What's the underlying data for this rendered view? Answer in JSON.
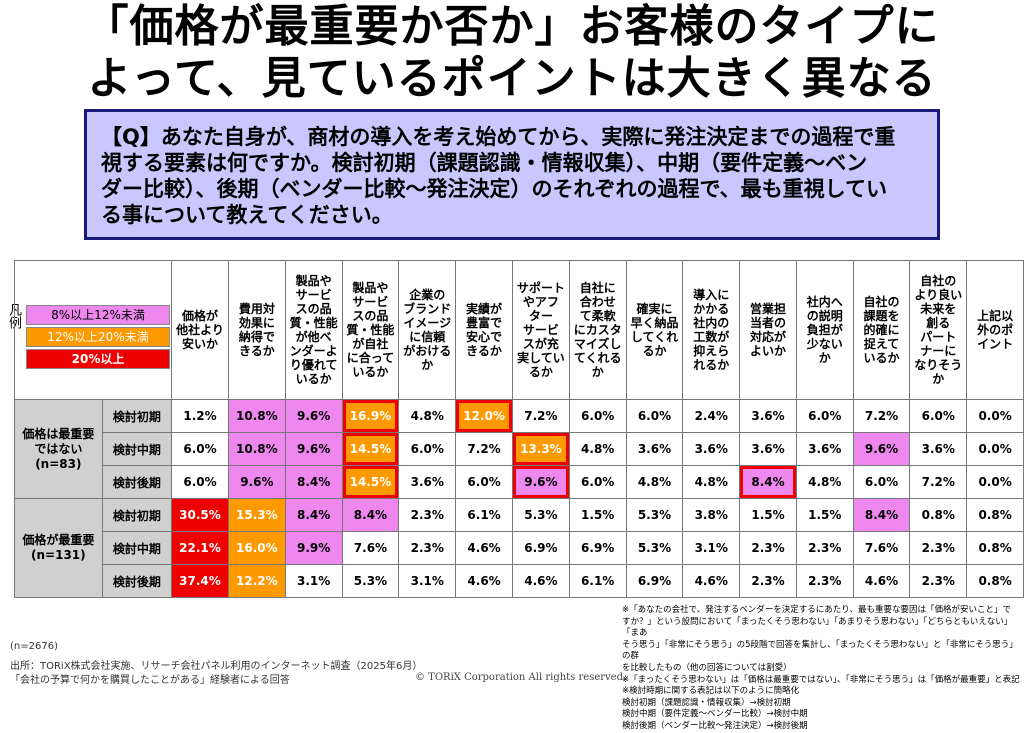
{
  "title_line1": "「価格が最重要か否か」お客様のタイプに",
  "title_line2": "よって、見ているポイントは大きく異なる",
  "question": {
    "lines": [
      "【Q】あなた自身が、商材の導入を考え始めてから、実際に発注決定までの過程で重",
      "視する要素は何ですか。検討初期（課題認識・情報収集）、中期（要件定義〜ベン",
      "ダー比較）、後期（ベンダー比較〜発注決定）のそれぞれの過程で、最も重視してい",
      "る事について教えてください。"
    ]
  },
  "legend": {
    "side_label": "凡例",
    "items": [
      {
        "label": "8%以上12%未満",
        "color": "#ee88ee"
      },
      {
        "label": "12%以上20%未満",
        "color": "#ff9900"
      },
      {
        "label": "20%以上",
        "color": "#ee0000"
      }
    ]
  },
  "columns": [
    [
      "価格が",
      "他社より",
      "安いか"
    ],
    [
      "費用対",
      "効果に",
      "納得で",
      "きるか"
    ],
    [
      "製品や",
      "サービ",
      "スの品",
      "質・性能",
      "が他ベ",
      "ンダーよ",
      "り優れて",
      "いるか"
    ],
    [
      "製品や",
      "サービ",
      "スの品",
      "質・性能",
      "が自社",
      "に合って",
      "いるか"
    ],
    [
      "企業の",
      "ブランド",
      "イメージ",
      "に信頼",
      "がおける",
      "か"
    ],
    [
      "実績が",
      "豊富で",
      "安心で",
      "きるか"
    ],
    [
      "サポート",
      "やアフ",
      "ター",
      "サービ",
      "スが充",
      "実してい",
      "るか"
    ],
    [
      "自社に",
      "合わせ",
      "て柔軟",
      "にカスタ",
      "マイズし",
      "てくれる",
      "か"
    ],
    [
      "確実に",
      "早く納品",
      "してくれ",
      "るか"
    ],
    [
      "導入に",
      "かかる",
      "社内の",
      "工数が",
      "抑えら",
      "れるか"
    ],
    [
      "営業担",
      "当者の",
      "対応が",
      "よいか"
    ],
    [
      "社内へ",
      "の説明",
      "負担が",
      "少ない",
      "か"
    ],
    [
      "自社の",
      "課題を",
      "的確に",
      "捉えて",
      "いるか"
    ],
    [
      "自社の",
      "より良い",
      "未来を",
      "創る",
      "パート",
      "ナーに",
      "なりそう",
      "か"
    ],
    [
      "上記以",
      "外のポ",
      "イント"
    ]
  ],
  "groups": [
    {
      "label_lines": [
        "価格は最重要",
        "ではない",
        "(n=83)"
      ],
      "rows": [
        {
          "stage": "検討初期",
          "values": [
            "1.2%",
            "10.8%",
            "9.6%",
            "16.9%",
            "4.8%",
            "12.0%",
            "7.2%",
            "6.0%",
            "6.0%",
            "2.4%",
            "3.6%",
            "6.0%",
            "7.2%",
            "6.0%",
            "0.0%"
          ]
        },
        {
          "stage": "検討中期",
          "values": [
            "6.0%",
            "10.8%",
            "9.6%",
            "14.5%",
            "6.0%",
            "7.2%",
            "13.3%",
            "4.8%",
            "3.6%",
            "3.6%",
            "3.6%",
            "3.6%",
            "9.6%",
            "3.6%",
            "0.0%"
          ]
        },
        {
          "stage": "検討後期",
          "values": [
            "6.0%",
            "9.6%",
            "8.4%",
            "14.5%",
            "3.6%",
            "6.0%",
            "9.6%",
            "6.0%",
            "4.8%",
            "4.8%",
            "8.4%",
            "4.8%",
            "6.0%",
            "7.2%",
            "0.0%"
          ]
        }
      ]
    },
    {
      "label_lines": [
        "価格が最重要",
        "(n=131)"
      ],
      "rows": [
        {
          "stage": "検討初期",
          "values": [
            "30.5%",
            "15.3%",
            "8.4%",
            "8.4%",
            "2.3%",
            "6.1%",
            "5.3%",
            "1.5%",
            "5.3%",
            "3.8%",
            "1.5%",
            "1.5%",
            "8.4%",
            "0.8%",
            "0.8%"
          ]
        },
        {
          "stage": "検討中期",
          "values": [
            "22.1%",
            "16.0%",
            "9.9%",
            "7.6%",
            "2.3%",
            "4.6%",
            "6.9%",
            "6.9%",
            "5.3%",
            "3.1%",
            "2.3%",
            "2.3%",
            "7.6%",
            "2.3%",
            "0.8%"
          ]
        },
        {
          "stage": "検討後期",
          "values": [
            "37.4%",
            "12.2%",
            "3.1%",
            "5.3%",
            "3.1%",
            "4.6%",
            "4.6%",
            "6.1%",
            "6.9%",
            "4.6%",
            "2.3%",
            "2.3%",
            "4.6%",
            "2.3%",
            "0.8%"
          ]
        }
      ]
    }
  ],
  "footer": {
    "n_total": "(n=2676)",
    "source1": "出所：TORiX株式会社実施、リサーチ会社パネル利用のインターネット調査（2025年6月）",
    "source2": "「会社の予算で何かを購買したことがある」経験者による回答",
    "copyright": "© TORiX Corporation All rights reserved.",
    "notes": [
      "※「あなたの会社で、発注するベンダーを決定するにあたり、最も重要な要因は「価格が安いこと」で",
      "すか？」という設問において「まったくそう思わない」「あまりそう思わない」「どちらともいえない」「まあ",
      "そう思う」「非常にそう思う」の5段階で回答を集計し、「まったくそう思わない」と「非常にそう思う」の群",
      "を比較したもの（他の回答については割愛）",
      "※「まったくそう思わない」は「価格は最重要ではない」、「非常にそう思う」は「価格が最重要」と表記",
      "※検討時期に関する表記は以下のように簡略化",
      "検討初期（課題認識・情報収集）→検討初期",
      "検討中期（要件定義〜ベンダー比較）→検討中期",
      "検討後期（ベンダー比較〜発注決定）→検討後期"
    ]
  }
}
